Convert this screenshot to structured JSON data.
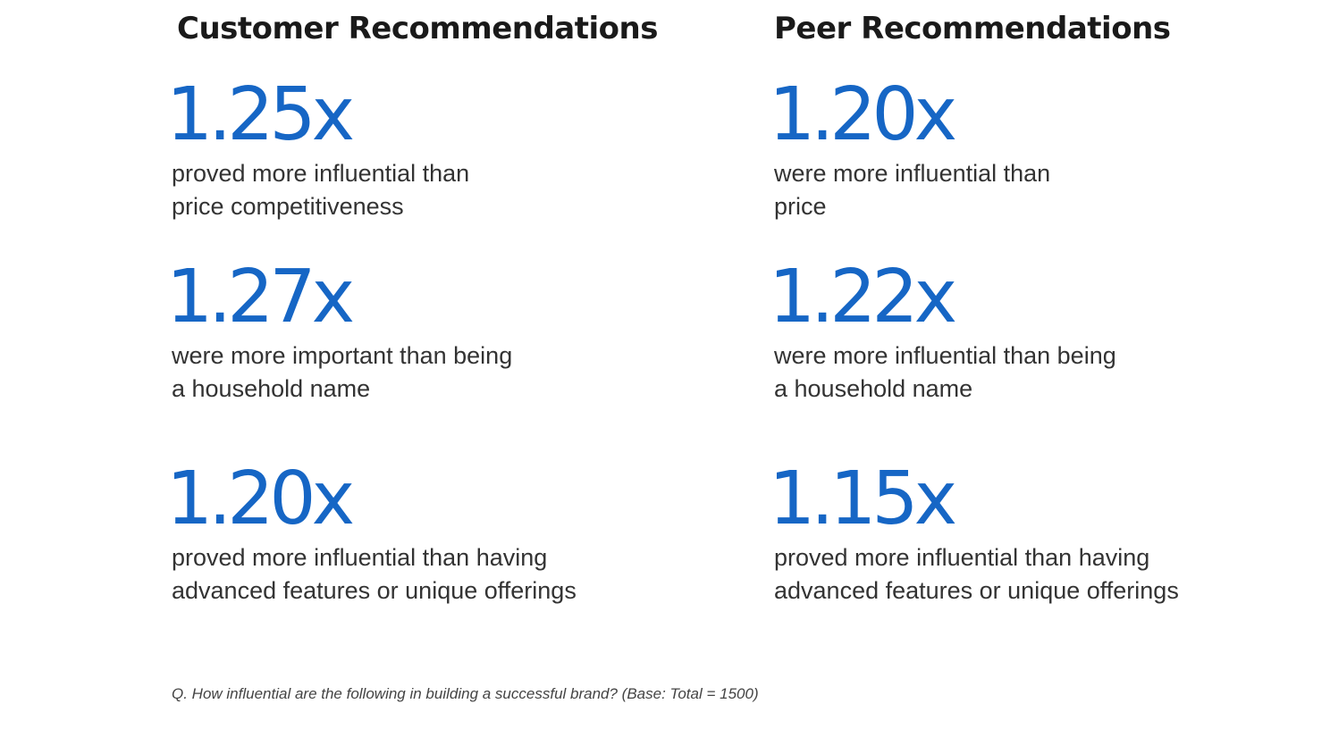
{
  "customer": {
    "heading": "Customer Recommendations",
    "stats": [
      {
        "value": "1.25x",
        "line1": "proved more influential than",
        "line2": "price competitiveness"
      },
      {
        "value": "1.27x",
        "line1": "were more important than being",
        "line2": "a household name"
      },
      {
        "value": "1.20x",
        "line1": "proved more influential than having",
        "line2": "advanced features or unique offerings"
      }
    ]
  },
  "peer": {
    "heading": "Peer Recommendations",
    "stats": [
      {
        "value": "1.20x",
        "line1": "were more influential than",
        "line2": "price"
      },
      {
        "value": "1.22x",
        "line1": "were more influential than being",
        "line2": "a household name"
      },
      {
        "value": "1.15x",
        "line1": "proved more influential than having",
        "line2": "advanced features or unique offerings"
      }
    ]
  },
  "footnote": "Q. How influential are the following in building a successful brand? (Base: Total = 1500)",
  "colors": {
    "accent": "#1666c5",
    "heading": "#1a1a1a",
    "body": "#333333"
  }
}
